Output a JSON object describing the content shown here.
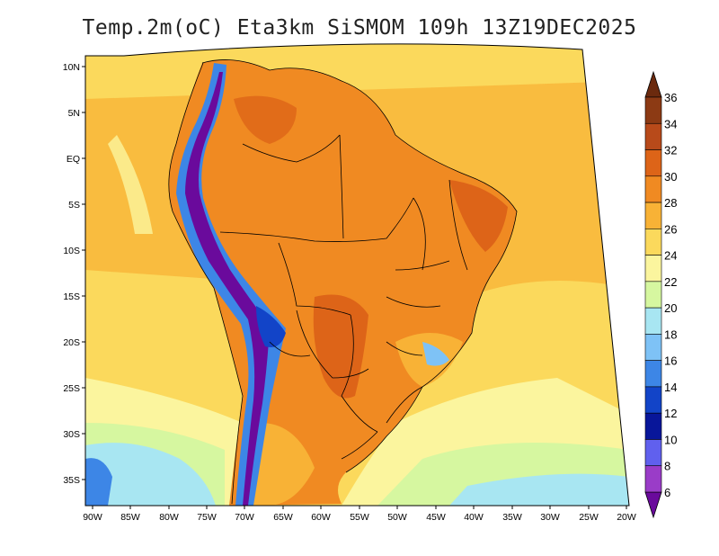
{
  "title": "Temp.2m(oC) Eta3km SiSMOM 109h 13Z19DEC2025",
  "map": {
    "variable": "2 m temperature",
    "units": "oC",
    "y_axis_labels": [
      "10N",
      "5N",
      "EQ",
      "5S",
      "10S",
      "15S",
      "20S",
      "25S",
      "30S",
      "35S"
    ],
    "x_axis_labels": [
      "90W",
      "85W",
      "80W",
      "75W",
      "70W",
      "65W",
      "60W",
      "55W",
      "50W",
      "45W",
      "40W",
      "35W",
      "30W",
      "25W",
      "20W"
    ]
  },
  "colorbar": {
    "labels": [
      "36",
      "34",
      "32",
      "30",
      "28",
      "26",
      "24",
      "22",
      "20",
      "18",
      "16",
      "14",
      "12",
      "10",
      "8",
      "6"
    ],
    "colors": [
      "#6b2a0e",
      "#8c3a14",
      "#b84a1a",
      "#dd6418",
      "#f08a22",
      "#f8b236",
      "#fbd95c",
      "#fbf59e",
      "#d6f7a0",
      "#a8e6f2",
      "#7ec2f6",
      "#3d86e6",
      "#1244c8",
      "#08169a",
      "#6060ee",
      "#9a3cc8",
      "#6a0a9c"
    ]
  },
  "colors": {
    "frame": "#000000",
    "ocean_warm": "#fbd95c",
    "ocean_cool": "#a8e6f2",
    "land": "#f08a22",
    "andes": "#6a0a9c"
  }
}
